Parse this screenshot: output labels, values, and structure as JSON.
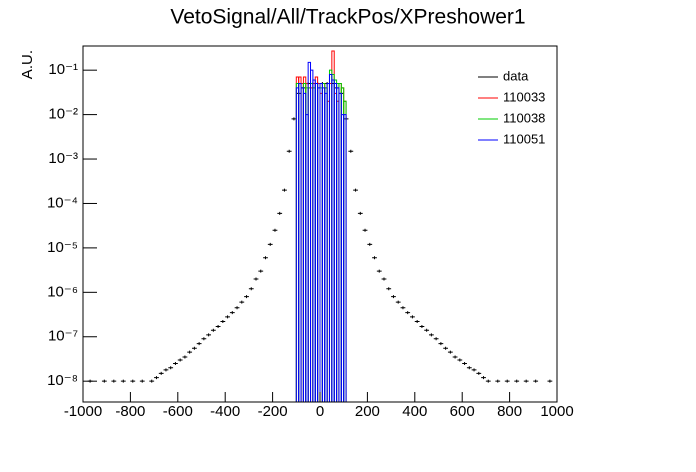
{
  "chart_data": {
    "type": "histogram",
    "title": "VetoSignal/All/TrackPos/XPreshower1",
    "ylabel": "A.U.",
    "yscale": "log",
    "legend": "upper right",
    "xlim": [
      -1000,
      1000
    ],
    "ylim": [
      3.4e-09,
      0.35
    ],
    "xticks": [
      -1000,
      -800,
      -600,
      -400,
      -200,
      0,
      200,
      400,
      600,
      800,
      1000
    ],
    "yticks": [
      {
        "value": 1e-08,
        "label": "10⁻⁸"
      },
      {
        "value": 1e-07,
        "label": "10⁻⁷"
      },
      {
        "value": 1e-06,
        "label": "10⁻⁶"
      },
      {
        "value": 1e-05,
        "label": "10⁻⁵"
      },
      {
        "value": 0.0001,
        "label": "10⁻⁴"
      },
      {
        "value": 0.001,
        "label": "10⁻³"
      },
      {
        "value": 0.01,
        "label": "10⁻²"
      },
      {
        "value": 0.1,
        "label": "10⁻¹"
      }
    ],
    "bins": [
      -100,
      -90,
      -80,
      -70,
      -60,
      -50,
      -40,
      -30,
      -20,
      -10,
      0,
      10,
      20,
      30,
      40,
      50,
      60,
      70,
      80,
      90,
      100,
      110
    ],
    "series": [
      {
        "name": "data",
        "color": "#000000",
        "style": "points",
        "x": [
          -990,
          -970,
          -950,
          -930,
          -910,
          -890,
          -870,
          -850,
          -830,
          -810,
          -790,
          -770,
          -750,
          -730,
          -710,
          -690,
          -670,
          -650,
          -630,
          -610,
          -590,
          -570,
          -550,
          -530,
          -510,
          -490,
          -470,
          -450,
          -430,
          -410,
          -390,
          -370,
          -350,
          -330,
          -310,
          -290,
          -270,
          -250,
          -230,
          -210,
          -190,
          -170,
          -150,
          -130,
          -110,
          -90,
          -70,
          -50,
          -30,
          -10,
          10,
          30,
          50,
          70,
          90,
          110,
          130,
          150,
          170,
          190,
          210,
          230,
          250,
          270,
          290,
          310,
          330,
          350,
          370,
          390,
          410,
          430,
          450,
          470,
          490,
          510,
          530,
          550,
          570,
          590,
          610,
          630,
          650,
          670,
          690,
          710,
          730,
          750,
          770,
          790,
          810,
          830,
          850,
          870,
          890,
          910,
          930,
          950,
          970,
          990
        ],
        "values": [
          null,
          1e-08,
          null,
          null,
          1e-08,
          null,
          1e-08,
          null,
          1e-08,
          null,
          1e-08,
          null,
          1e-08,
          null,
          1e-08,
          1.2e-08,
          1.5e-08,
          1.8e-08,
          2e-08,
          2.5e-08,
          3e-08,
          3.5e-08,
          4.5e-08,
          5.5e-08,
          7e-08,
          9e-08,
          1.1e-07,
          1.4e-07,
          1.7e-07,
          2.2e-07,
          2.8e-07,
          3.5e-07,
          4.5e-07,
          6e-07,
          8e-07,
          1.2e-06,
          2e-06,
          3e-06,
          6e-06,
          1.2e-05,
          2.5e-05,
          6e-05,
          0.0002,
          0.0015,
          0.008,
          0.03,
          0.04,
          0.05,
          0.05,
          0.05,
          0.05,
          0.05,
          0.05,
          0.04,
          0.03,
          0.008,
          0.0015,
          0.0002,
          6e-05,
          2.5e-05,
          1.2e-05,
          6e-06,
          3e-06,
          2e-06,
          1.2e-06,
          8e-07,
          6e-07,
          4.5e-07,
          3.5e-07,
          2.8e-07,
          2.2e-07,
          1.7e-07,
          1.4e-07,
          1.1e-07,
          9e-08,
          7e-08,
          5.5e-08,
          4.5e-08,
          3.5e-08,
          3e-08,
          2.5e-08,
          2e-08,
          1.8e-08,
          1.5e-08,
          1.2e-08,
          1e-08,
          null,
          1e-08,
          null,
          1e-08,
          null,
          1e-08,
          null,
          1e-08,
          null,
          1e-08,
          null,
          null,
          1e-08,
          null
        ]
      },
      {
        "name": "110033",
        "color": "#ff0000",
        "style": "step",
        "values": [
          0.07,
          0.07,
          0.05,
          0.07,
          0.05,
          0.04,
          0.04,
          0.05,
          0.07,
          0.05,
          0.03,
          0.05,
          0.04,
          0.02,
          0.05,
          0.27,
          0.03,
          0.02,
          0.05,
          0.04,
          0.02
        ]
      },
      {
        "name": "110038",
        "color": "#00cc00",
        "style": "step",
        "values": [
          0.05,
          0.05,
          0.04,
          0.05,
          0.04,
          0.04,
          0.05,
          0.04,
          0.05,
          0.04,
          0.04,
          0.05,
          0.04,
          0.05,
          0.1,
          0.08,
          0.06,
          0.05,
          0.05,
          0.04,
          0.02
        ]
      },
      {
        "name": "110051",
        "color": "#0000ff",
        "style": "step",
        "values": [
          0.04,
          0.05,
          0.04,
          0.03,
          0.01,
          0.15,
          0.1,
          0.06,
          0.05,
          0.04,
          0.05,
          0.04,
          0.03,
          0.05,
          0.08,
          0.06,
          0.05,
          0.04,
          0.03,
          0.01,
          0.01
        ]
      }
    ]
  }
}
